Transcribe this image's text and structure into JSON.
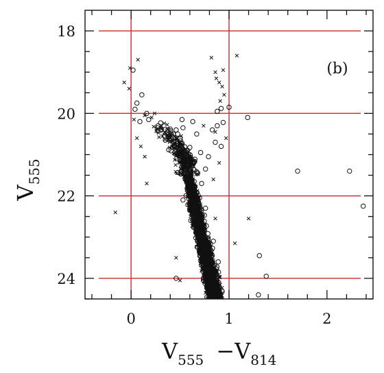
{
  "chart_data": {
    "type": "scatter",
    "panel_label": "(b)",
    "xlabel": {
      "main": "V",
      "sub": "555",
      "sep": "−V",
      "sub2": "814"
    },
    "ylabel": {
      "main": "V",
      "sub": "555"
    },
    "xlim": [
      -0.47,
      2.47
    ],
    "ylim": [
      24.5,
      17.5
    ],
    "xticks": [
      0,
      1,
      2
    ],
    "yticks": [
      18,
      20,
      22,
      24
    ],
    "grid_lines": {
      "vertical": [
        0,
        1
      ],
      "horizontal": [
        18,
        20,
        22,
        24
      ],
      "color": "#cc2a2a"
    },
    "series": [
      {
        "marker": "cross",
        "points": [
          [
            0.07,
            18.7
          ],
          [
            0.82,
            18.65
          ],
          [
            -0.01,
            18.9
          ],
          [
            -0.07,
            19.25
          ],
          [
            -0.02,
            19.4
          ],
          [
            1.08,
            18.6
          ],
          [
            0.86,
            19.0
          ],
          [
            0.9,
            19.25
          ],
          [
            0.93,
            19.35
          ],
          [
            0.94,
            18.95
          ],
          [
            0.87,
            19.15
          ],
          [
            0.95,
            19.55
          ],
          [
            0.91,
            19.7
          ],
          [
            0.03,
            20.15
          ],
          [
            0.14,
            20.05
          ],
          [
            0.21,
            20.1
          ],
          [
            0.24,
            20.0
          ],
          [
            0.31,
            20.3
          ],
          [
            0.06,
            20.6
          ],
          [
            0.1,
            20.8
          ],
          [
            0.14,
            21.05
          ],
          [
            0.74,
            20.3
          ],
          [
            0.86,
            20.45
          ],
          [
            0.97,
            20.6
          ],
          [
            0.9,
            21.2
          ],
          [
            0.84,
            21.6
          ],
          [
            -0.16,
            22.4
          ],
          [
            0.16,
            21.7
          ],
          [
            1.2,
            22.55
          ],
          [
            1.06,
            23.15
          ],
          [
            0.86,
            22.55
          ],
          [
            0.46,
            23.5
          ],
          [
            0.5,
            24.05
          ],
          [
            0.69,
            23.25
          ],
          [
            0.76,
            24.35
          ]
        ]
      },
      {
        "marker": "circle",
        "points": [
          [
            0.02,
            18.95
          ],
          [
            0.06,
            19.75
          ],
          [
            0.11,
            19.55
          ],
          [
            0.04,
            19.9
          ],
          [
            0.09,
            20.2
          ],
          [
            0.16,
            20.0
          ],
          [
            0.18,
            20.15
          ],
          [
            0.27,
            20.35
          ],
          [
            0.34,
            20.55
          ],
          [
            0.46,
            20.4
          ],
          [
            0.53,
            20.35
          ],
          [
            0.43,
            20.6
          ],
          [
            0.63,
            20.2
          ],
          [
            0.52,
            20.15
          ],
          [
            0.67,
            20.5
          ],
          [
            0.83,
            20.4
          ],
          [
            0.88,
            20.3
          ],
          [
            0.86,
            20.7
          ],
          [
            0.92,
            19.88
          ],
          [
            0.88,
            19.95
          ],
          [
            0.94,
            20.22
          ],
          [
            0.92,
            20.8
          ],
          [
            0.71,
            20.95
          ],
          [
            0.79,
            21.05
          ],
          [
            0.64,
            21.2
          ],
          [
            0.68,
            21.45
          ],
          [
            0.76,
            21.35
          ],
          [
            0.72,
            21.7
          ],
          [
            1.0,
            19.85
          ],
          [
            1.19,
            20.1
          ],
          [
            1.7,
            21.4
          ],
          [
            2.23,
            21.4
          ],
          [
            2.37,
            22.25
          ],
          [
            1.31,
            23.45
          ],
          [
            1.38,
            23.95
          ],
          [
            1.3,
            24.4
          ],
          [
            0.46,
            24.0
          ],
          [
            0.61,
            22.6
          ],
          [
            0.53,
            22.1
          ],
          [
            0.7,
            22.05
          ],
          [
            0.76,
            22.3
          ],
          [
            0.74,
            22.8
          ],
          [
            0.84,
            23.1
          ],
          [
            0.89,
            23.6
          ],
          [
            0.83,
            23.9
          ]
        ]
      }
    ]
  }
}
